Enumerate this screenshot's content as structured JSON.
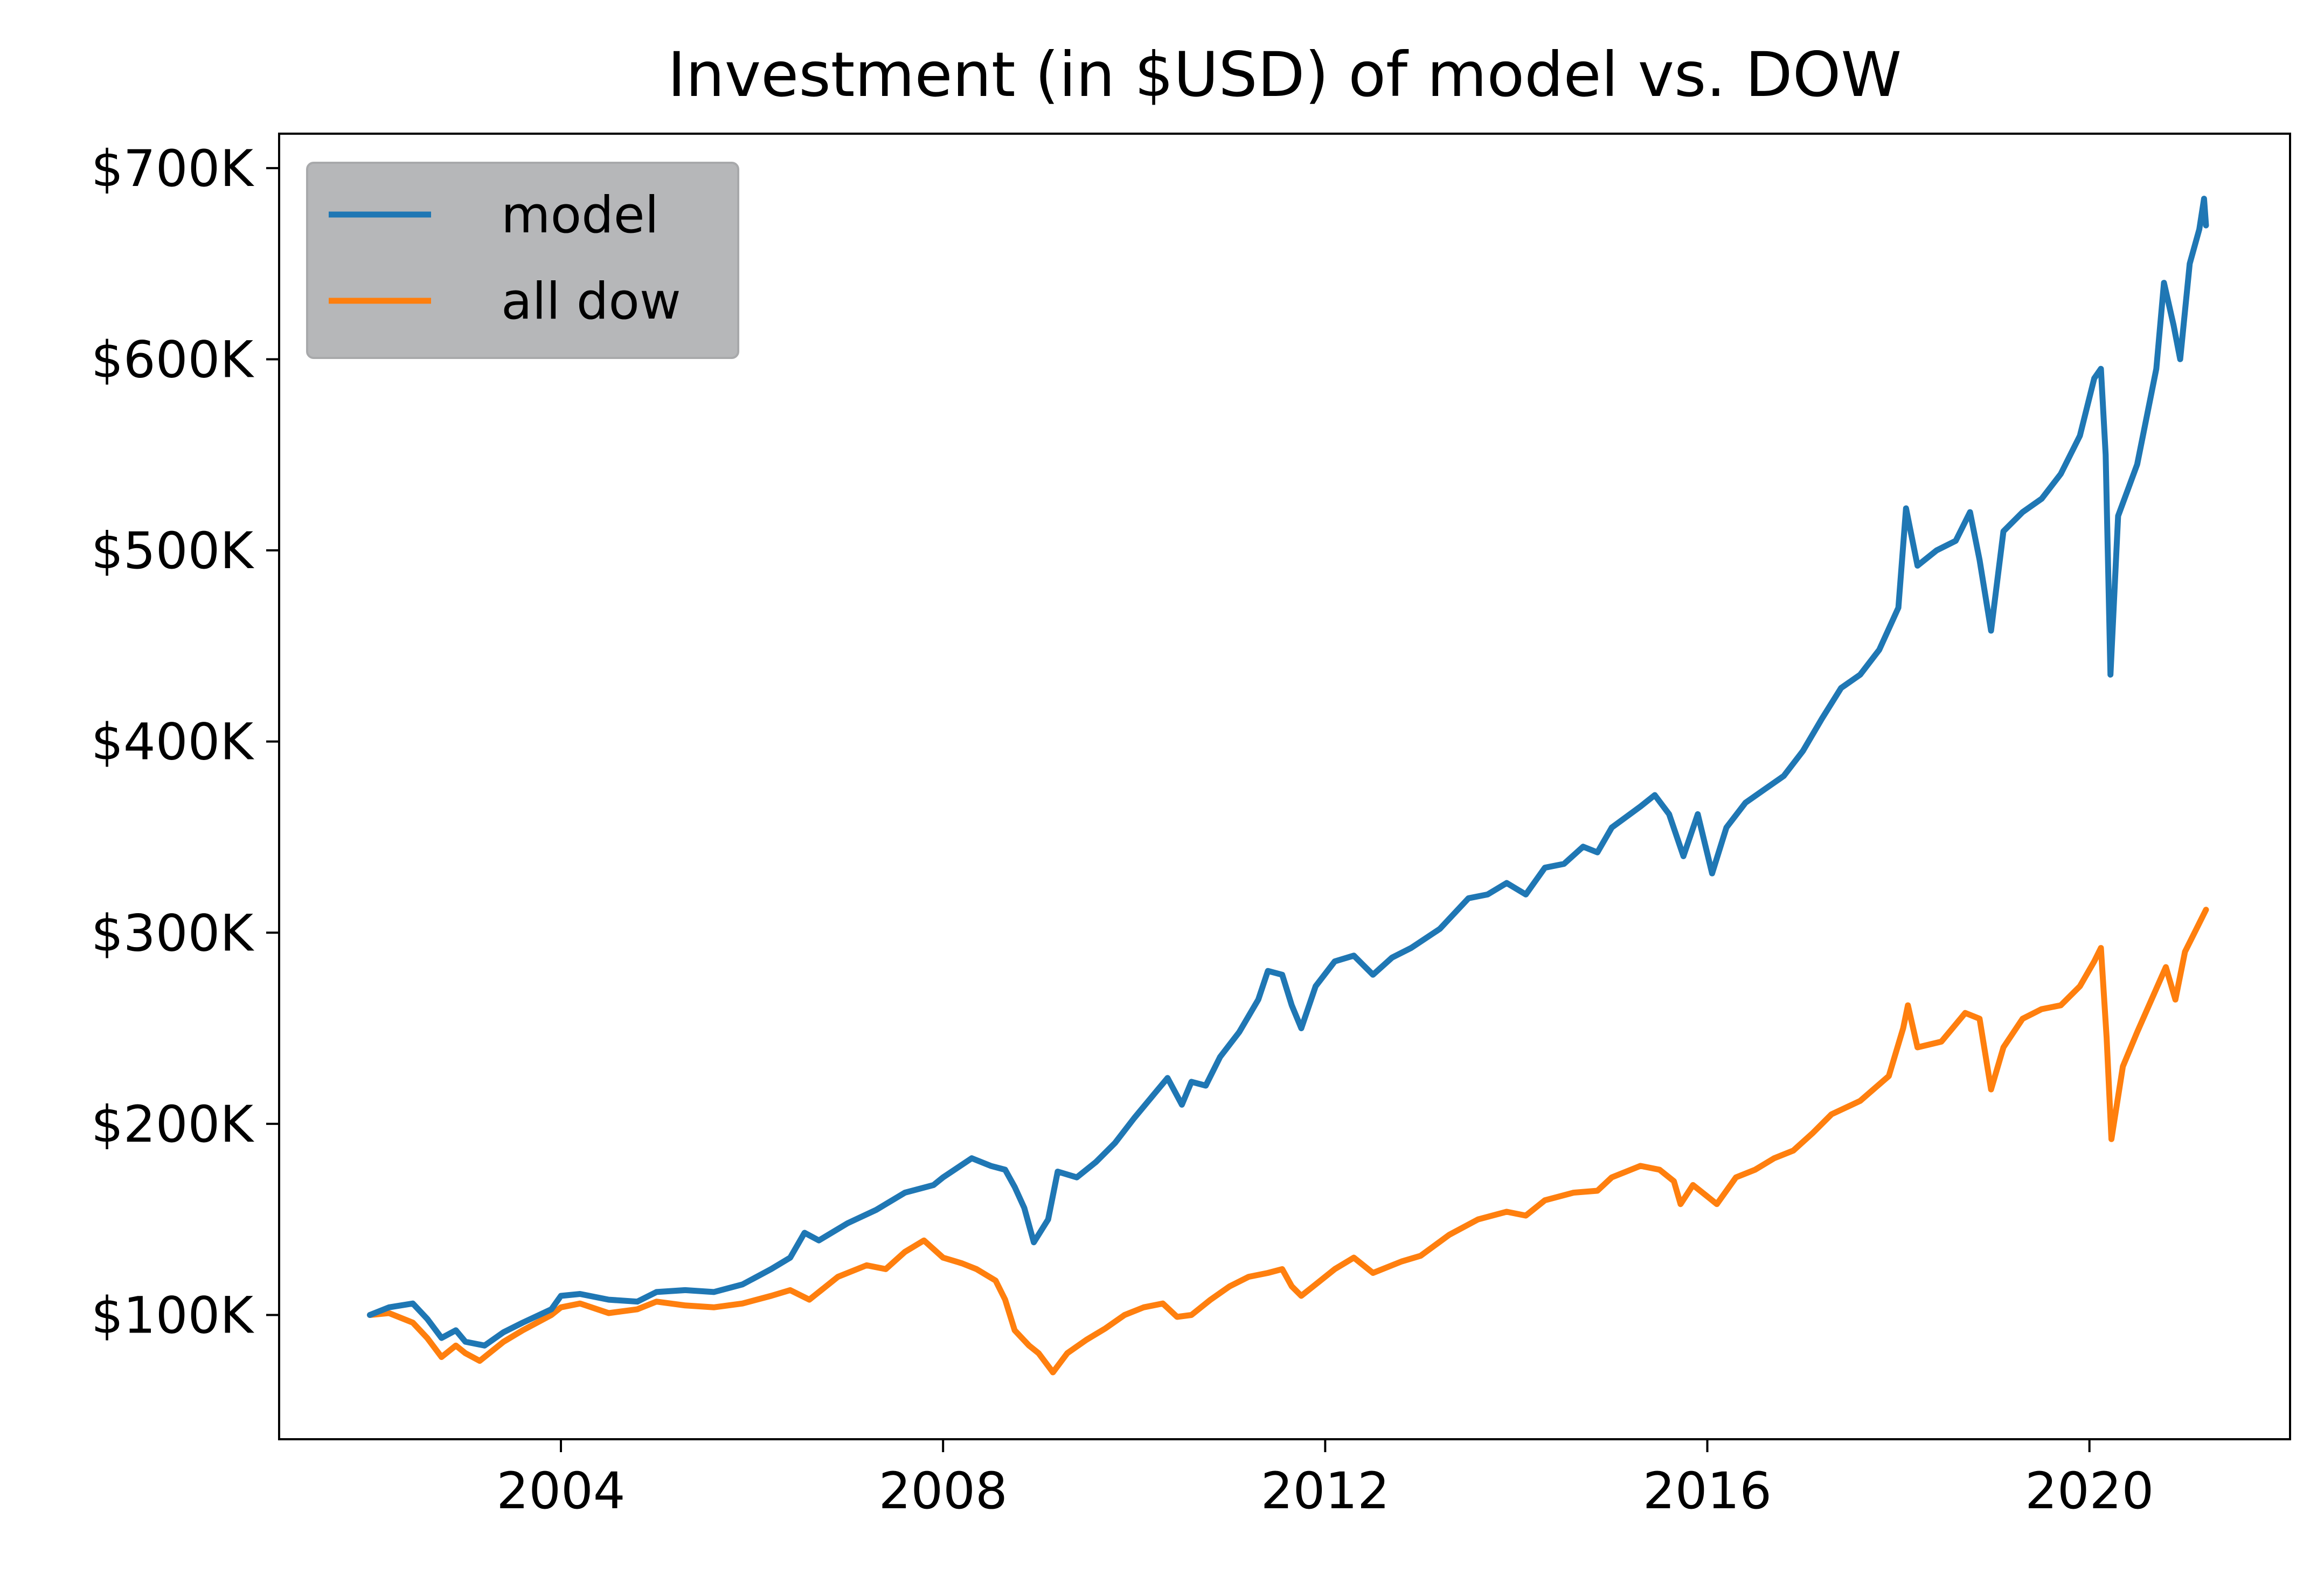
{
  "chart_data": {
    "type": "line",
    "title": "Investment (in $USD) of model vs. DOW",
    "xlabel": "",
    "ylabel": "",
    "x_ticks": [
      2004,
      2008,
      2012,
      2016,
      2020
    ],
    "x_tick_labels": [
      "2004",
      "2008",
      "2012",
      "2016",
      "2020"
    ],
    "xlim": [
      2001.05,
      2022.1
    ],
    "y_ticks": [
      100000,
      200000,
      300000,
      400000,
      500000,
      600000,
      700000
    ],
    "y_tick_labels": [
      "$100K",
      "$200K",
      "$300K",
      "$400K",
      "$500K",
      "$600K",
      "$700K"
    ],
    "ylim": [
      35000,
      718000
    ],
    "grid": false,
    "legend": {
      "position": "top-left",
      "background": "#b6b7b9"
    },
    "series": [
      {
        "name": "model",
        "color": "#1f77b4",
        "points": [
          [
            2002.0,
            100000
          ],
          [
            2002.2,
            104000
          ],
          [
            2002.45,
            106000
          ],
          [
            2002.6,
            98000
          ],
          [
            2002.75,
            88000
          ],
          [
            2002.9,
            92000
          ],
          [
            2003.0,
            86000
          ],
          [
            2003.2,
            84000
          ],
          [
            2003.4,
            91000
          ],
          [
            2003.6,
            96000
          ],
          [
            2003.9,
            103000
          ],
          [
            2004.0,
            110000
          ],
          [
            2004.2,
            111000
          ],
          [
            2004.5,
            108000
          ],
          [
            2004.8,
            107000
          ],
          [
            2005.0,
            112000
          ],
          [
            2005.3,
            113000
          ],
          [
            2005.6,
            112000
          ],
          [
            2005.9,
            116000
          ],
          [
            2006.2,
            124000
          ],
          [
            2006.4,
            130000
          ],
          [
            2006.55,
            143000
          ],
          [
            2006.7,
            139000
          ],
          [
            2007.0,
            148000
          ],
          [
            2007.3,
            155000
          ],
          [
            2007.6,
            164000
          ],
          [
            2007.9,
            168000
          ],
          [
            2008.0,
            172000
          ],
          [
            2008.3,
            182000
          ],
          [
            2008.5,
            178000
          ],
          [
            2008.65,
            176000
          ],
          [
            2008.75,
            167000
          ],
          [
            2008.85,
            156000
          ],
          [
            2008.95,
            138000
          ],
          [
            2009.1,
            150000
          ],
          [
            2009.2,
            175000
          ],
          [
            2009.4,
            172000
          ],
          [
            2009.6,
            180000
          ],
          [
            2009.8,
            190000
          ],
          [
            2010.0,
            203000
          ],
          [
            2010.2,
            215000
          ],
          [
            2010.35,
            224000
          ],
          [
            2010.5,
            210000
          ],
          [
            2010.6,
            222000
          ],
          [
            2010.75,
            220000
          ],
          [
            2010.9,
            235000
          ],
          [
            2011.1,
            248000
          ],
          [
            2011.3,
            265000
          ],
          [
            2011.4,
            280000
          ],
          [
            2011.55,
            278000
          ],
          [
            2011.65,
            262000
          ],
          [
            2011.75,
            250000
          ],
          [
            2011.9,
            272000
          ],
          [
            2012.1,
            285000
          ],
          [
            2012.3,
            288000
          ],
          [
            2012.5,
            278000
          ],
          [
            2012.7,
            287000
          ],
          [
            2012.9,
            292000
          ],
          [
            2013.2,
            302000
          ],
          [
            2013.5,
            318000
          ],
          [
            2013.7,
            320000
          ],
          [
            2013.9,
            326000
          ],
          [
            2014.1,
            320000
          ],
          [
            2014.3,
            334000
          ],
          [
            2014.5,
            336000
          ],
          [
            2014.7,
            345000
          ],
          [
            2014.85,
            342000
          ],
          [
            2015.0,
            355000
          ],
          [
            2015.3,
            366000
          ],
          [
            2015.45,
            372000
          ],
          [
            2015.6,
            362000
          ],
          [
            2015.75,
            340000
          ],
          [
            2015.9,
            362000
          ],
          [
            2016.05,
            331000
          ],
          [
            2016.2,
            355000
          ],
          [
            2016.4,
            368000
          ],
          [
            2016.6,
            375000
          ],
          [
            2016.8,
            382000
          ],
          [
            2017.0,
            395000
          ],
          [
            2017.2,
            412000
          ],
          [
            2017.4,
            428000
          ],
          [
            2017.6,
            435000
          ],
          [
            2017.8,
            448000
          ],
          [
            2018.0,
            470000
          ],
          [
            2018.08,
            522000
          ],
          [
            2018.2,
            492000
          ],
          [
            2018.4,
            500000
          ],
          [
            2018.6,
            505000
          ],
          [
            2018.75,
            520000
          ],
          [
            2018.85,
            495000
          ],
          [
            2018.97,
            458000
          ],
          [
            2019.1,
            510000
          ],
          [
            2019.3,
            520000
          ],
          [
            2019.5,
            527000
          ],
          [
            2019.7,
            540000
          ],
          [
            2019.9,
            560000
          ],
          [
            2020.05,
            590000
          ],
          [
            2020.12,
            595000
          ],
          [
            2020.17,
            550000
          ],
          [
            2020.22,
            435000
          ],
          [
            2020.3,
            518000
          ],
          [
            2020.5,
            545000
          ],
          [
            2020.7,
            595000
          ],
          [
            2020.78,
            640000
          ],
          [
            2020.88,
            618000
          ],
          [
            2020.95,
            600000
          ],
          [
            2021.05,
            650000
          ],
          [
            2021.15,
            668000
          ],
          [
            2021.2,
            684000
          ],
          [
            2021.22,
            670000
          ]
        ]
      },
      {
        "name": "all dow",
        "color": "#ff7f0e",
        "points": [
          [
            2002.0,
            100000
          ],
          [
            2002.2,
            101000
          ],
          [
            2002.45,
            96000
          ],
          [
            2002.6,
            88000
          ],
          [
            2002.75,
            78000
          ],
          [
            2002.9,
            84000
          ],
          [
            2003.0,
            80000
          ],
          [
            2003.15,
            76000
          ],
          [
            2003.4,
            86000
          ],
          [
            2003.6,
            92000
          ],
          [
            2003.9,
            100000
          ],
          [
            2004.0,
            104000
          ],
          [
            2004.2,
            106000
          ],
          [
            2004.5,
            101000
          ],
          [
            2004.8,
            103000
          ],
          [
            2005.0,
            107000
          ],
          [
            2005.3,
            105000
          ],
          [
            2005.6,
            104000
          ],
          [
            2005.9,
            106000
          ],
          [
            2006.2,
            110000
          ],
          [
            2006.4,
            113000
          ],
          [
            2006.6,
            108000
          ],
          [
            2006.9,
            120000
          ],
          [
            2007.2,
            126000
          ],
          [
            2007.4,
            124000
          ],
          [
            2007.6,
            133000
          ],
          [
            2007.8,
            139000
          ],
          [
            2008.0,
            130000
          ],
          [
            2008.2,
            127000
          ],
          [
            2008.35,
            124000
          ],
          [
            2008.55,
            118000
          ],
          [
            2008.65,
            108000
          ],
          [
            2008.75,
            92000
          ],
          [
            2008.9,
            84000
          ],
          [
            2009.0,
            80000
          ],
          [
            2009.15,
            70000
          ],
          [
            2009.3,
            80000
          ],
          [
            2009.5,
            87000
          ],
          [
            2009.7,
            93000
          ],
          [
            2009.9,
            100000
          ],
          [
            2010.1,
            104000
          ],
          [
            2010.3,
            106000
          ],
          [
            2010.45,
            99000
          ],
          [
            2010.6,
            100000
          ],
          [
            2010.8,
            108000
          ],
          [
            2011.0,
            115000
          ],
          [
            2011.2,
            120000
          ],
          [
            2011.4,
            122000
          ],
          [
            2011.55,
            124000
          ],
          [
            2011.65,
            115000
          ],
          [
            2011.75,
            110000
          ],
          [
            2011.9,
            116000
          ],
          [
            2012.1,
            124000
          ],
          [
            2012.3,
            130000
          ],
          [
            2012.5,
            122000
          ],
          [
            2012.8,
            128000
          ],
          [
            2013.0,
            131000
          ],
          [
            2013.3,
            142000
          ],
          [
            2013.6,
            150000
          ],
          [
            2013.9,
            154000
          ],
          [
            2014.1,
            152000
          ],
          [
            2014.3,
            160000
          ],
          [
            2014.6,
            164000
          ],
          [
            2014.85,
            165000
          ],
          [
            2015.0,
            172000
          ],
          [
            2015.3,
            178000
          ],
          [
            2015.5,
            176000
          ],
          [
            2015.65,
            170000
          ],
          [
            2015.72,
            158000
          ],
          [
            2015.85,
            168000
          ],
          [
            2016.0,
            162000
          ],
          [
            2016.1,
            158000
          ],
          [
            2016.3,
            172000
          ],
          [
            2016.5,
            176000
          ],
          [
            2016.7,
            182000
          ],
          [
            2016.9,
            186000
          ],
          [
            2017.1,
            195000
          ],
          [
            2017.3,
            205000
          ],
          [
            2017.6,
            212000
          ],
          [
            2017.9,
            225000
          ],
          [
            2018.05,
            250000
          ],
          [
            2018.1,
            262000
          ],
          [
            2018.2,
            240000
          ],
          [
            2018.45,
            243000
          ],
          [
            2018.7,
            258000
          ],
          [
            2018.85,
            255000
          ],
          [
            2018.97,
            218000
          ],
          [
            2019.1,
            240000
          ],
          [
            2019.3,
            255000
          ],
          [
            2019.5,
            260000
          ],
          [
            2019.7,
            262000
          ],
          [
            2019.9,
            272000
          ],
          [
            2020.05,
            285000
          ],
          [
            2020.12,
            292000
          ],
          [
            2020.18,
            245000
          ],
          [
            2020.23,
            192000
          ],
          [
            2020.35,
            230000
          ],
          [
            2020.5,
            248000
          ],
          [
            2020.65,
            265000
          ],
          [
            2020.8,
            282000
          ],
          [
            2020.9,
            265000
          ],
          [
            2021.0,
            290000
          ],
          [
            2021.15,
            305000
          ],
          [
            2021.22,
            312000
          ]
        ]
      }
    ]
  }
}
